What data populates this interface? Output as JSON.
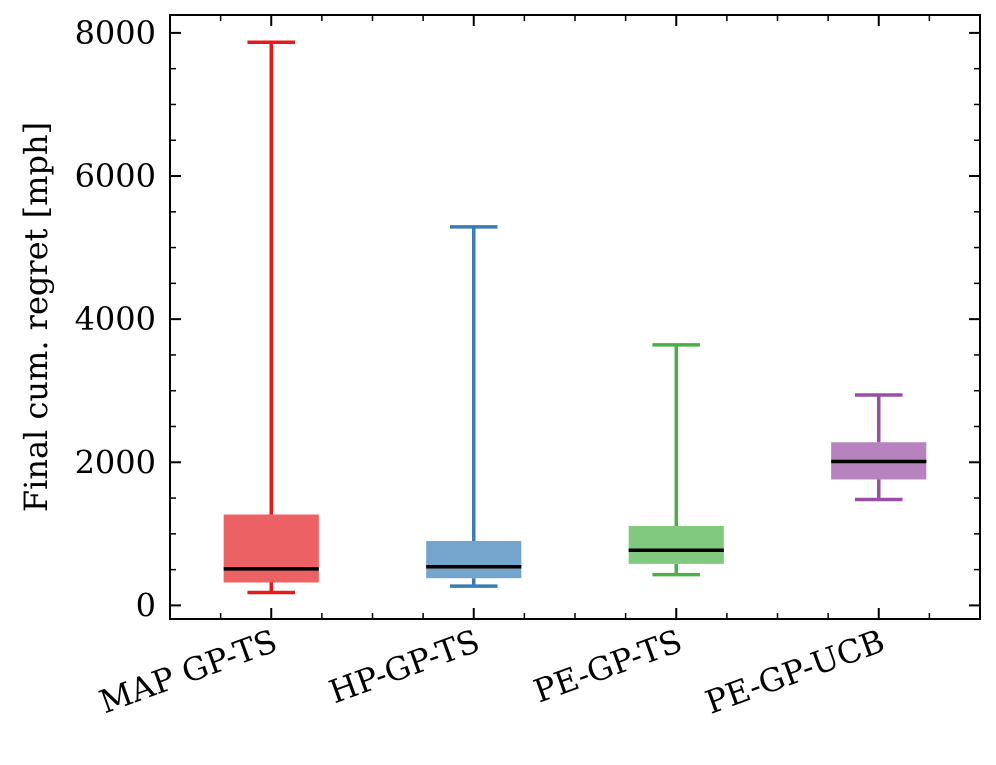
{
  "chart_data": {
    "type": "boxplot",
    "title": "",
    "xlabel": "",
    "ylabel": "Final cum. regret [mph]",
    "ylim": [
      -190,
      8250
    ],
    "yticks": [
      0,
      2000,
      4000,
      6000,
      8000
    ],
    "yticks_minor_step": 500,
    "categories": [
      "MAP GP-TS",
      "HP-GP-TS",
      "PE-GP-TS",
      "PE-GP-UCB"
    ],
    "series": [
      {
        "name": "MAP GP-TS",
        "color": "#e41a1c",
        "box_fill": "#ec6163",
        "whisker_low": 180,
        "q1": 320,
        "median": 510,
        "q3": 1270,
        "whisker_high": 7870
      },
      {
        "name": "HP-GP-TS",
        "color": "#377eb8",
        "box_fill": "#74a5cd",
        "whisker_low": 270,
        "q1": 380,
        "median": 540,
        "q3": 900,
        "whisker_high": 5290
      },
      {
        "name": "PE-GP-TS",
        "color": "#4daf4a",
        "box_fill": "#82c980",
        "whisker_low": 430,
        "q1": 580,
        "median": 770,
        "q3": 1110,
        "whisker_high": 3640
      },
      {
        "name": "PE-GP-UCB",
        "color": "#984ea3",
        "box_fill": "#b683bf",
        "whisker_low": 1480,
        "q1": 1760,
        "median": 2010,
        "q3": 2280,
        "whisker_high": 2940
      }
    ],
    "median_color": "#000000",
    "grid": false,
    "legend": "none"
  }
}
